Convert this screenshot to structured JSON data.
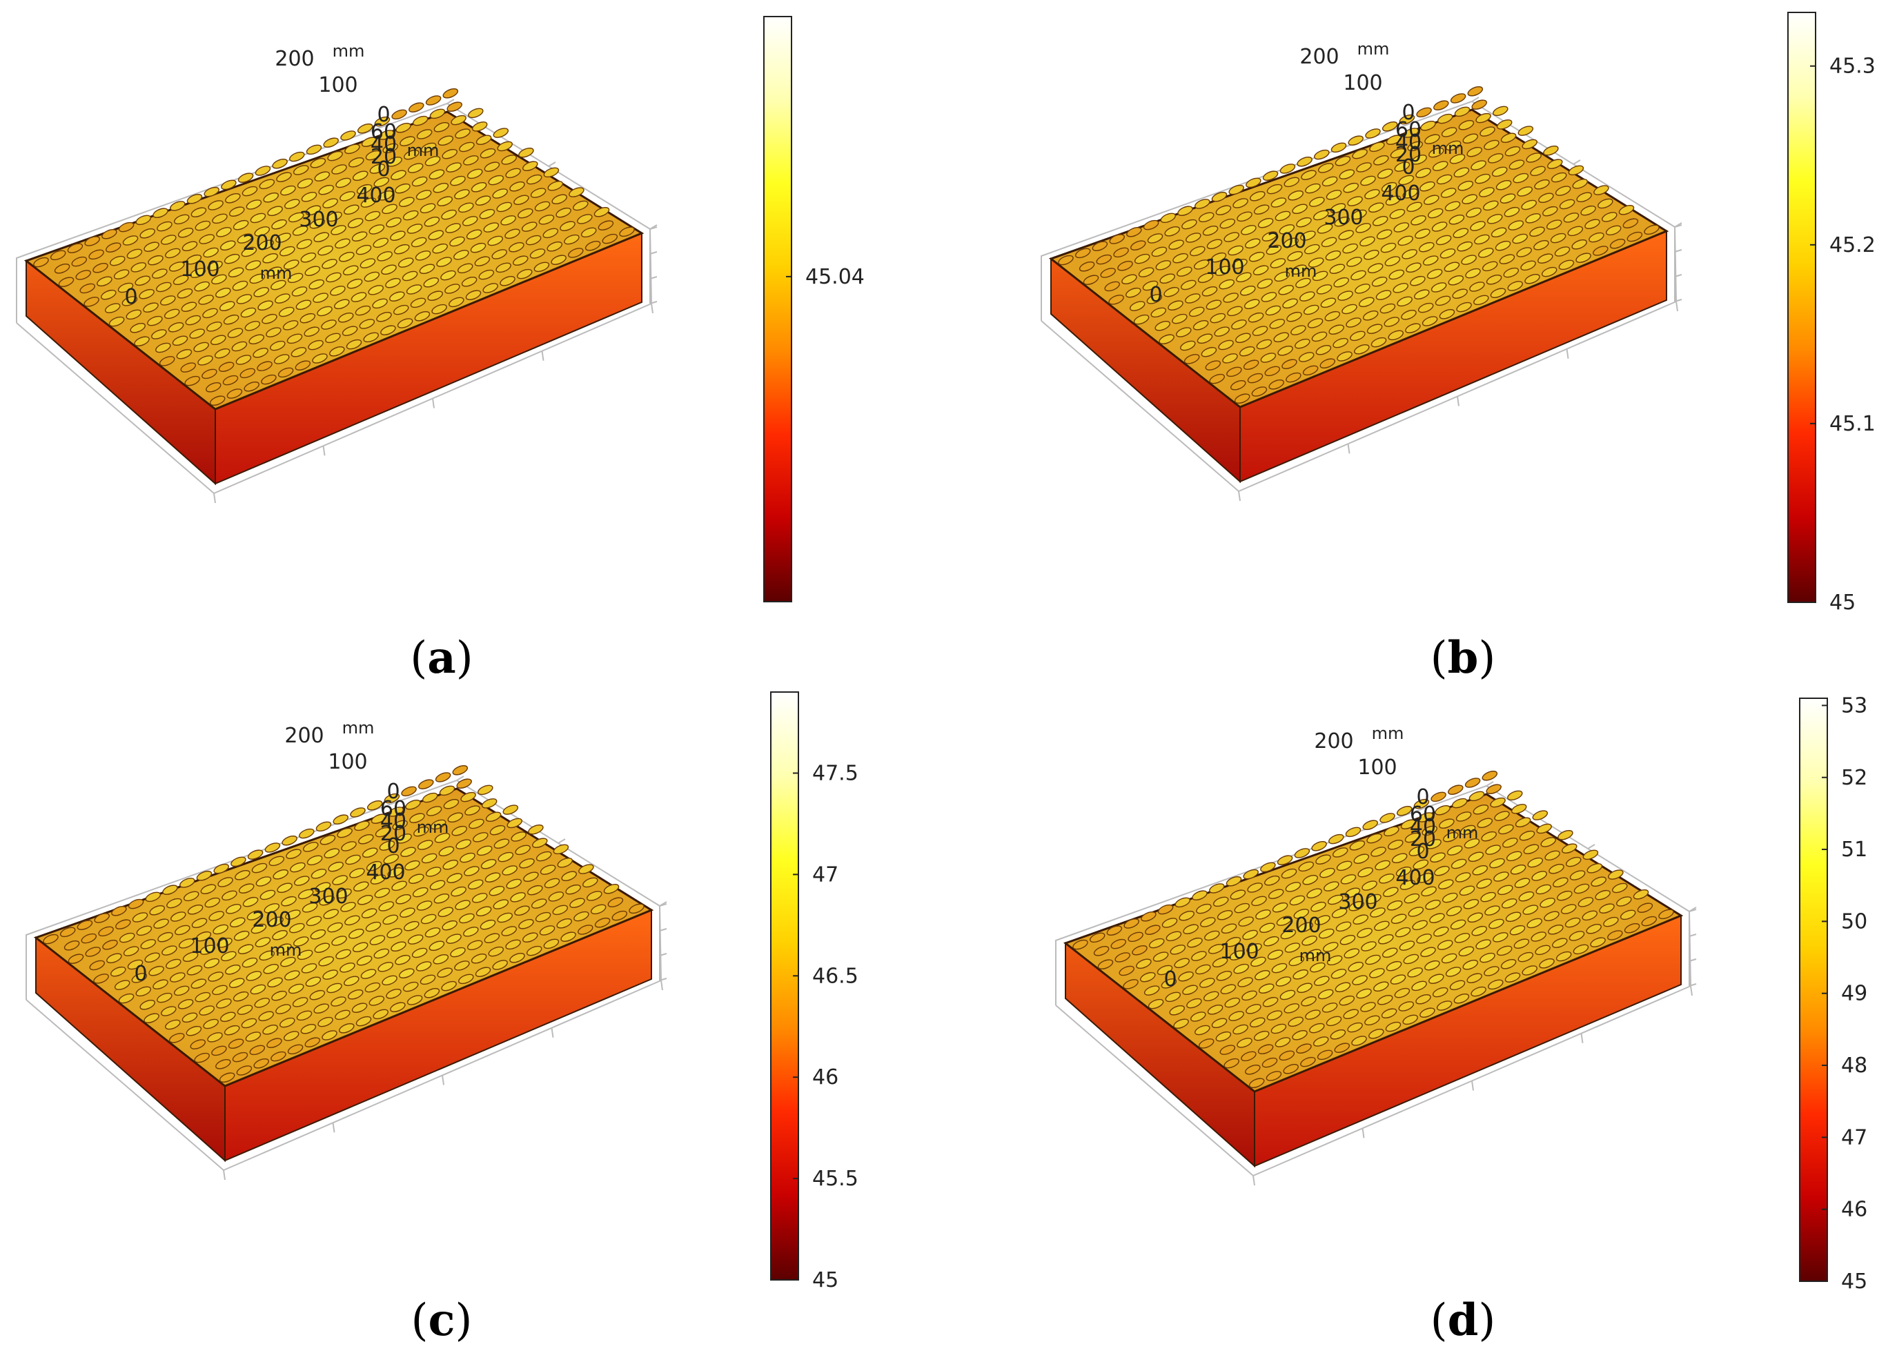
{
  "chart_data": [
    {
      "type": "heatmap",
      "caption": "(a)",
      "caption_letter": "a",
      "x_axis": {
        "ticks": [
          "0",
          "100",
          "200",
          "300",
          "400"
        ],
        "unit": "mm"
      },
      "y_axis": {
        "ticks": [
          "0",
          "100",
          "200"
        ],
        "unit": "mm"
      },
      "z_axis": {
        "ticks": [
          "0",
          "20",
          "40",
          "60"
        ],
        "unit": "mm"
      },
      "colorbar": {
        "ticks": [
          "45.04"
        ],
        "range": [
          44.99,
          45.08
        ],
        "colormap": "heat"
      }
    },
    {
      "type": "heatmap",
      "caption": "(b)",
      "caption_letter": "b",
      "x_axis": {
        "ticks": [
          "0",
          "100",
          "200",
          "300",
          "400"
        ],
        "unit": "mm"
      },
      "y_axis": {
        "ticks": [
          "0",
          "100",
          "200"
        ],
        "unit": "mm"
      },
      "z_axis": {
        "ticks": [
          "0",
          "20",
          "40",
          "60"
        ],
        "unit": "mm"
      },
      "colorbar": {
        "ticks": [
          "45",
          "45.1",
          "45.2",
          "45.3"
        ],
        "range": [
          45.0,
          45.33
        ],
        "colormap": "heat"
      }
    },
    {
      "type": "heatmap",
      "caption": "(c)",
      "caption_letter": "c",
      "x_axis": {
        "ticks": [
          "0",
          "100",
          "200",
          "300",
          "400"
        ],
        "unit": "mm"
      },
      "y_axis": {
        "ticks": [
          "0",
          "100",
          "200"
        ],
        "unit": "mm"
      },
      "z_axis": {
        "ticks": [
          "0",
          "20",
          "40",
          "60"
        ],
        "unit": "mm"
      },
      "colorbar": {
        "ticks": [
          "45",
          "45.5",
          "46",
          "46.5",
          "47",
          "47.5"
        ],
        "range": [
          45.0,
          47.9
        ],
        "colormap": "heat"
      }
    },
    {
      "type": "heatmap",
      "caption": "(d)",
      "caption_letter": "d",
      "x_axis": {
        "ticks": [
          "0",
          "100",
          "200",
          "300",
          "400"
        ],
        "unit": "mm"
      },
      "y_axis": {
        "ticks": [
          "0",
          "100",
          "200"
        ],
        "unit": "mm"
      },
      "z_axis": {
        "ticks": [
          "0",
          "20",
          "40",
          "60"
        ],
        "unit": "mm"
      },
      "colorbar": {
        "ticks": [
          "45",
          "46",
          "47",
          "48",
          "49",
          "50",
          "51",
          "52",
          "53"
        ],
        "range": [
          45.0,
          53.1
        ],
        "colormap": "heat"
      }
    }
  ],
  "colors": {
    "side_top": "#ff6a12",
    "side_bottom": "#c21208",
    "frame_dark": "#3a1a05",
    "grid_line": "#bbbbbb",
    "heat_stops": [
      "#5c0000",
      "#c80000",
      "#ff2a00",
      "#ff8a00",
      "#ffd000",
      "#ffff20",
      "#ffffb0",
      "#ffffff"
    ]
  }
}
